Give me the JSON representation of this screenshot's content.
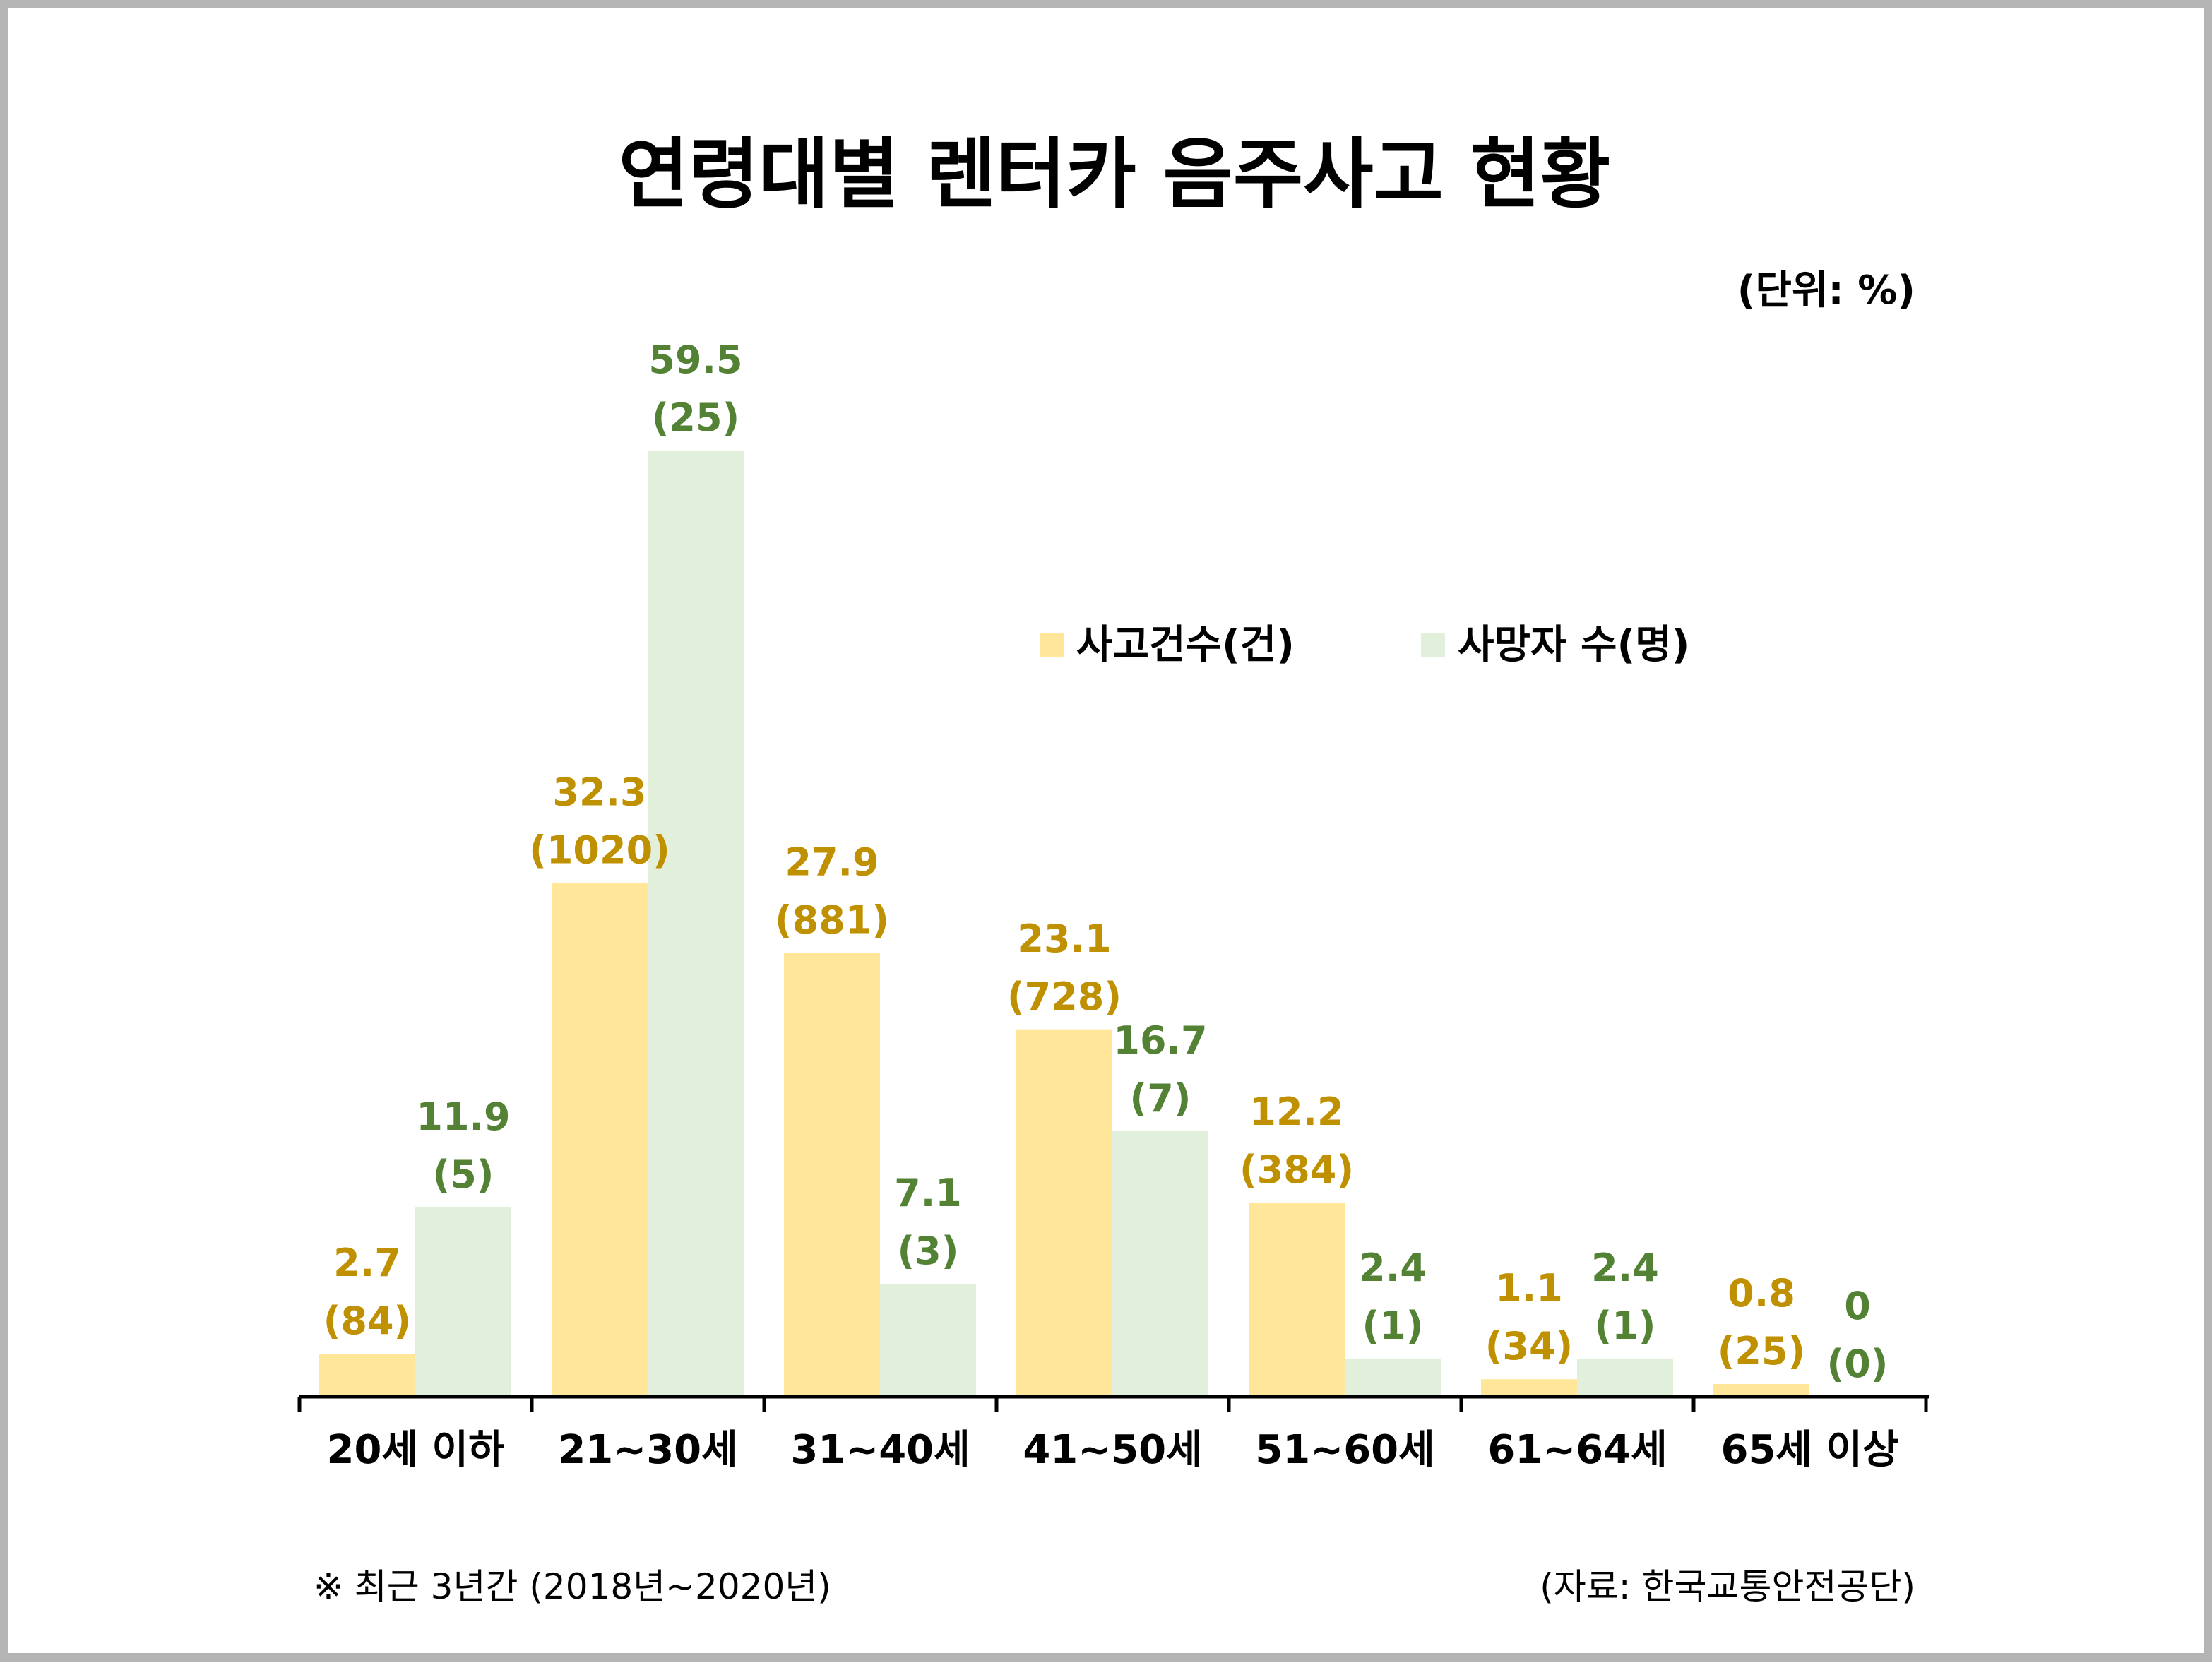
{
  "chart_data": {
    "type": "bar",
    "title": "연령대별 렌터카 음주사고 현황",
    "unit_label": "(단위: %)",
    "categories": [
      "20세 이하",
      "21~30세",
      "31~40세",
      "41~50세",
      "51~60세",
      "61~64세",
      "65세 이상"
    ],
    "series": [
      {
        "name": "사고건수(건)",
        "color": "#ffe699",
        "label_color": "#bf9000",
        "values": [
          2.7,
          32.3,
          27.9,
          23.1,
          12.2,
          1.1,
          0.8
        ],
        "value_labels": [
          "2.7",
          "32.3",
          "27.9",
          "23.1",
          "12.2",
          "1.1",
          "0.8"
        ],
        "counts": [
          "(84)",
          "(1020)",
          "(881)",
          "(728)",
          "(384)",
          "(34)",
          "(25)"
        ]
      },
      {
        "name": "사망자 수(명)",
        "color": "#e2efda",
        "label_color": "#548235",
        "values": [
          11.9,
          59.5,
          7.1,
          16.7,
          2.4,
          2.4,
          0
        ],
        "value_labels": [
          "11.9",
          "59.5",
          "7.1",
          "16.7",
          "2.4",
          "2.4",
          "0"
        ],
        "counts": [
          "(5)",
          "(25)",
          "(3)",
          "(7)",
          "(1)",
          "(1)",
          "(0)"
        ]
      }
    ],
    "ylim": [
      0,
      59.5
    ],
    "legend_position": "top-right",
    "grid": false
  },
  "footnote": "※ 최근 3년간 (2018년~2020년)",
  "source": "(자료: 한국교통안전공단)"
}
